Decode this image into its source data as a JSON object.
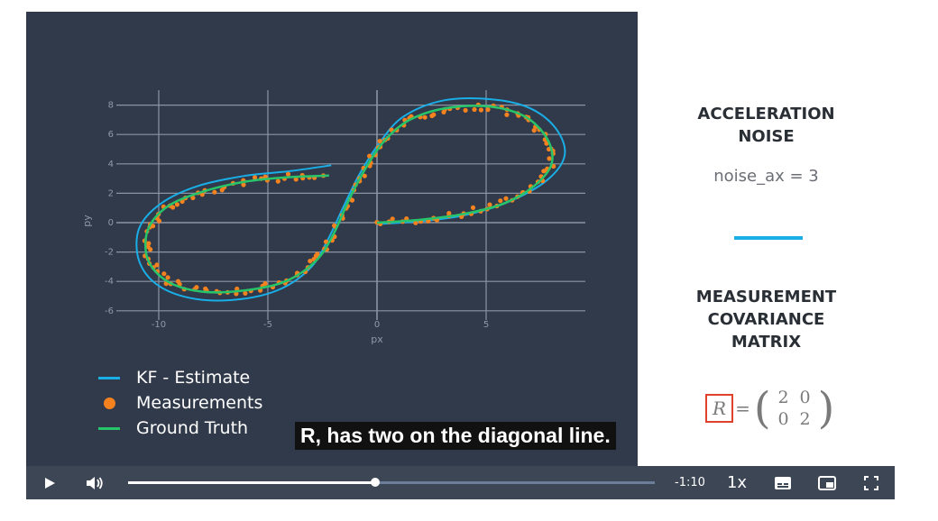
{
  "plot": {
    "y_label": "py",
    "x_label": "px",
    "x_ticks": [
      "-10",
      "-5",
      "0",
      "5"
    ],
    "y_ticks": [
      "8",
      "6",
      "4",
      "2",
      "0",
      "-2",
      "-4",
      "-6"
    ],
    "colors": {
      "estimate": "#1aaee6",
      "measurements": "#f5821e",
      "ground_truth": "#27c46a"
    }
  },
  "legend": [
    {
      "label": "KF - Estimate",
      "kind": "line",
      "color": "#1aaee6"
    },
    {
      "label": "Measurements",
      "kind": "dot",
      "color": "#f5821e"
    },
    {
      "label": "Ground Truth",
      "kind": "line",
      "color": "#27c46a"
    }
  ],
  "caption": "R, has two on the diagonal line.",
  "right_panel": {
    "heading1_line1": "ACCELERATION",
    "heading1_line2": "NOISE",
    "noise_value": "noise_ax = 3",
    "divider_color": "#1aaee6",
    "heading2_line1": "MEASUREMENT",
    "heading2_line2": "COVARIANCE",
    "heading2_line3": "MATRIX",
    "matrix_symbol": "R",
    "matrix_equals": "=",
    "matrix_values": [
      "2",
      "0",
      "0",
      "2"
    ]
  },
  "controls": {
    "play_icon": "play-icon",
    "volume_icon": "volume-icon",
    "progress_fraction": 0.47,
    "time_remaining": "-1:10",
    "speed": "1x",
    "captions_icon": "captions-icon",
    "pip_icon": "picture-in-picture-icon",
    "fullscreen_icon": "fullscreen-icon"
  }
}
